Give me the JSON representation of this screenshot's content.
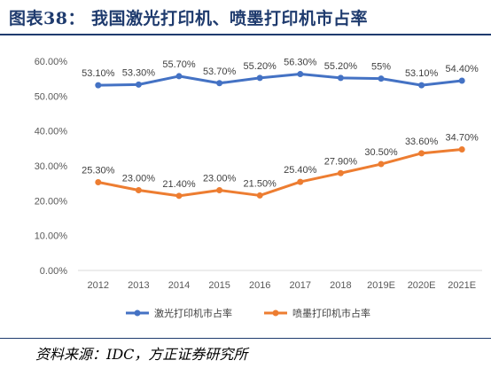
{
  "header": {
    "title": "图表38：  我国激光打印机、喷墨打印机市占率"
  },
  "source": "资料来源：IDC，方正证券研究所",
  "chart_data": {
    "type": "line",
    "title": "",
    "xlabel": "",
    "ylabel": "",
    "categories": [
      "2012",
      "2013",
      "2014",
      "2015",
      "2016",
      "2017",
      "2018",
      "2019E",
      "2020E",
      "2021E"
    ],
    "ylim": [
      0,
      60
    ],
    "yticks": [
      "0.00%",
      "10.00%",
      "20.00%",
      "30.00%",
      "40.00%",
      "50.00%",
      "60.00%"
    ],
    "grid": false,
    "legend_position": "bottom",
    "series": [
      {
        "name": "激光打印机市占率",
        "color": "#4472c4",
        "values": [
          53.1,
          53.3,
          55.7,
          53.7,
          55.2,
          56.3,
          55.2,
          55.0,
          53.1,
          54.4
        ],
        "labels": [
          "53.10%",
          "53.30%",
          "55.70%",
          "53.70%",
          "55.20%",
          "56.30%",
          "55.20%",
          "55%",
          "53.10%",
          "54.40%"
        ]
      },
      {
        "name": "喷墨打印机市占率",
        "color": "#ed7d31",
        "values": [
          25.3,
          23.0,
          21.4,
          23.0,
          21.5,
          25.4,
          27.9,
          30.5,
          33.6,
          34.7
        ],
        "labels": [
          "25.30%",
          "23.00%",
          "21.40%",
          "23.00%",
          "21.50%",
          "25.40%",
          "27.90%",
          "30.50%",
          "33.60%",
          "34.70%"
        ]
      }
    ]
  }
}
